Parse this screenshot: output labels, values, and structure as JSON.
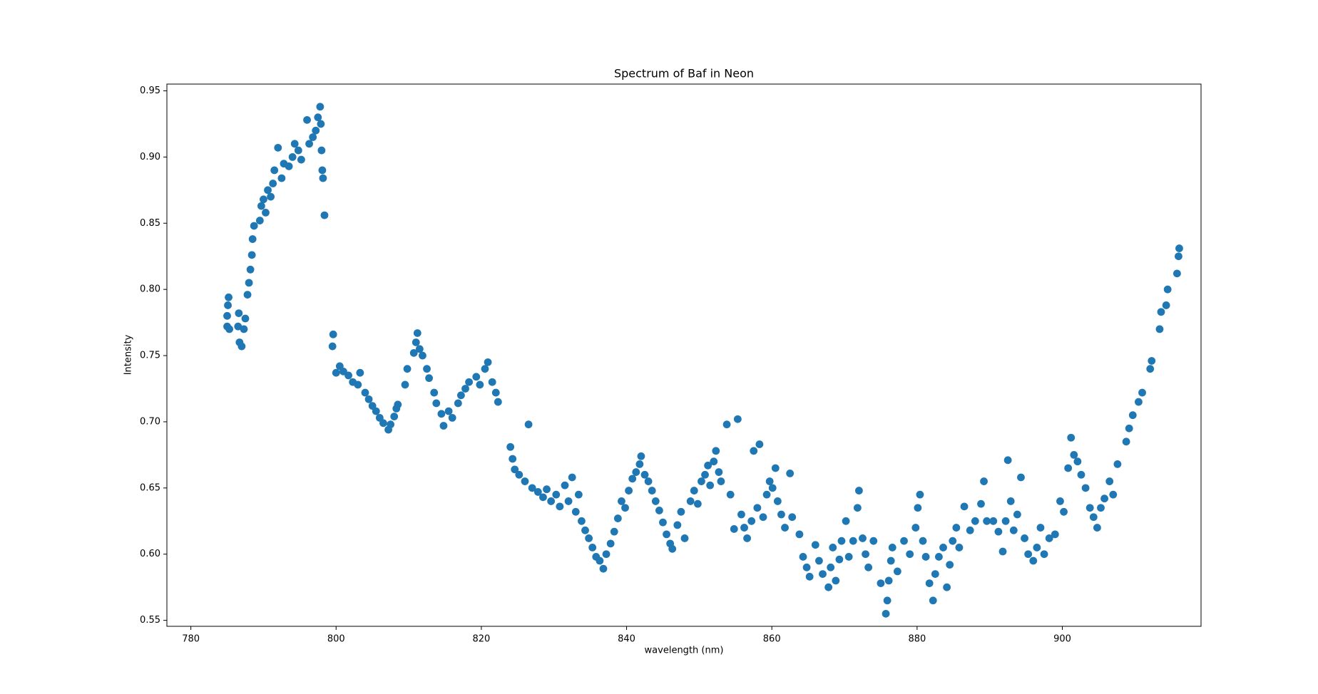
{
  "chart_data": {
    "type": "scatter",
    "title": "Spectrum of Baf in Neon",
    "x_label": "wavelength (nm)",
    "y_label": "Intensity",
    "color": "#1f77b4",
    "xlim": [
      776.7,
      919.1
    ],
    "ylim": [
      0.5455,
      0.9551
    ],
    "xticks": [
      780,
      800,
      820,
      840,
      860,
      880,
      900
    ],
    "yticks": [
      0.55,
      {
        "value": 0.6,
        "label": "0.60"
      },
      0.65,
      {
        "value": 0.7,
        "label": "0.70"
      },
      0.75,
      {
        "value": 0.8,
        "label": "0.80"
      },
      0.85,
      {
        "value": 0.9,
        "label": "0.90"
      },
      0.95
    ],
    "x": [
      785,
      785,
      785.1,
      785.2,
      785.3,
      786.5,
      786.6,
      786.7,
      787,
      787.3,
      787.5,
      787.8,
      788,
      788.2,
      788.4,
      788.5,
      788.7,
      789.5,
      789.7,
      790,
      790.3,
      790.6,
      791,
      791.3,
      791.5,
      792,
      792.5,
      792.8,
      793.5,
      794,
      794.3,
      794.8,
      795.2,
      796,
      796.3,
      796.8,
      797.2,
      797.5,
      797.8,
      797.9,
      798,
      798.1,
      798.2,
      798.4,
      799.5,
      799.6,
      800,
      800.5,
      801,
      801.7,
      802.3,
      803,
      803.3,
      804,
      804.5,
      805,
      805.5,
      806,
      806.5,
      807.2,
      807.5,
      808,
      808.3,
      808.5,
      809.5,
      809.8,
      810.7,
      811,
      811.2,
      811.5,
      811.9,
      812.5,
      812.8,
      813.5,
      813.8,
      814.5,
      814.8,
      815.5,
      816,
      816.8,
      817.2,
      817.8,
      818.3,
      819.3,
      819.8,
      820.5,
      820.9,
      821.5,
      822,
      822.3,
      824,
      824.3,
      824.6,
      825.2,
      826,
      826.5,
      827,
      827.8,
      828.5,
      829,
      829.6,
      830.3,
      830.8,
      831.5,
      832,
      832.5,
      833,
      833.4,
      833.8,
      834.3,
      834.8,
      835.3,
      835.8,
      836.3,
      836.8,
      837.2,
      837.8,
      838.3,
      838.8,
      839.3,
      839.8,
      840.3,
      840.8,
      841.3,
      841.8,
      842,
      842.5,
      843,
      843.5,
      844,
      844.5,
      845,
      845.5,
      846,
      846.3,
      847,
      847.5,
      848,
      848.8,
      849.3,
      849.8,
      850.3,
      850.8,
      851.2,
      851.5,
      852,
      852.3,
      852.7,
      853,
      853.8,
      854.3,
      854.8,
      855.3,
      855.8,
      856.2,
      856.6,
      857.2,
      857.5,
      858,
      858.3,
      858.8,
      859.3,
      859.7,
      860.1,
      860.5,
      860.8,
      861.3,
      861.8,
      862.5,
      862.8,
      863.8,
      864.3,
      864.8,
      865.2,
      866,
      866.5,
      867,
      867.8,
      868.1,
      868.4,
      868.8,
      869.3,
      869.6,
      870.2,
      870.6,
      871.2,
      871.8,
      872,
      872.5,
      872.9,
      873.3,
      874,
      875,
      875.7,
      875.9,
      876.1,
      876.4,
      876.6,
      877.3,
      878.2,
      879,
      879.8,
      880.1,
      880.4,
      880.8,
      881.2,
      881.7,
      882.2,
      882.5,
      883,
      883.6,
      884.1,
      884.5,
      884.9,
      885.4,
      885.8,
      886.5,
      887.3,
      888,
      888.8,
      889.2,
      889.6,
      890.5,
      891.2,
      891.8,
      892.2,
      892.5,
      892.9,
      893.3,
      893.8,
      894.3,
      894.8,
      895.3,
      896,
      896.5,
      897,
      897.5,
      898.2,
      899,
      899.7,
      900.2,
      900.8,
      901.2,
      901.6,
      902.1,
      902.6,
      903.2,
      903.8,
      904.3,
      904.8,
      905.3,
      905.8,
      906.5,
      907,
      907.6,
      908.8,
      909.2,
      909.7,
      910.5,
      911,
      912.1,
      912.3,
      913.4,
      913.6,
      914.3,
      914.5,
      915.8,
      916,
      916.1
    ],
    "values": [
      0.772,
      0.78,
      0.788,
      0.794,
      0.77,
      0.772,
      0.782,
      0.76,
      0.757,
      0.77,
      0.778,
      0.796,
      0.805,
      0.815,
      0.826,
      0.838,
      0.848,
      0.852,
      0.863,
      0.868,
      0.858,
      0.875,
      0.87,
      0.88,
      0.89,
      0.907,
      0.884,
      0.895,
      0.893,
      0.9,
      0.91,
      0.905,
      0.898,
      0.928,
      0.91,
      0.915,
      0.92,
      0.93,
      0.938,
      0.925,
      0.905,
      0.89,
      0.884,
      0.856,
      0.757,
      0.766,
      0.737,
      0.742,
      0.738,
      0.735,
      0.73,
      0.728,
      0.737,
      0.722,
      0.717,
      0.712,
      0.708,
      0.703,
      0.699,
      0.694,
      0.698,
      0.704,
      0.71,
      0.713,
      0.728,
      0.74,
      0.752,
      0.76,
      0.767,
      0.755,
      0.75,
      0.74,
      0.733,
      0.722,
      0.714,
      0.706,
      0.697,
      0.708,
      0.703,
      0.714,
      0.72,
      0.725,
      0.73,
      0.734,
      0.728,
      0.74,
      0.745,
      0.73,
      0.722,
      0.715,
      0.681,
      0.672,
      0.664,
      0.66,
      0.655,
      0.698,
      0.65,
      0.647,
      0.643,
      0.649,
      0.64,
      0.645,
      0.636,
      0.652,
      0.64,
      0.658,
      0.632,
      0.645,
      0.625,
      0.618,
      0.612,
      0.605,
      0.598,
      0.595,
      0.589,
      0.6,
      0.608,
      0.617,
      0.627,
      0.64,
      0.635,
      0.648,
      0.657,
      0.662,
      0.668,
      0.674,
      0.66,
      0.655,
      0.648,
      0.64,
      0.633,
      0.624,
      0.615,
      0.608,
      0.604,
      0.622,
      0.632,
      0.612,
      0.64,
      0.648,
      0.638,
      0.655,
      0.66,
      0.667,
      0.652,
      0.67,
      0.678,
      0.662,
      0.655,
      0.698,
      0.645,
      0.619,
      0.702,
      0.63,
      0.62,
      0.612,
      0.625,
      0.678,
      0.635,
      0.683,
      0.628,
      0.645,
      0.655,
      0.65,
      0.665,
      0.64,
      0.63,
      0.62,
      0.661,
      0.628,
      0.615,
      0.598,
      0.59,
      0.583,
      0.607,
      0.595,
      0.585,
      0.575,
      0.59,
      0.605,
      0.58,
      0.596,
      0.61,
      0.625,
      0.598,
      0.61,
      0.635,
      0.648,
      0.612,
      0.6,
      0.59,
      0.61,
      0.578,
      0.555,
      0.565,
      0.58,
      0.595,
      0.605,
      0.587,
      0.61,
      0.6,
      0.62,
      0.635,
      0.645,
      0.61,
      0.598,
      0.578,
      0.565,
      0.585,
      0.598,
      0.605,
      0.575,
      0.592,
      0.61,
      0.62,
      0.605,
      0.636,
      0.618,
      0.625,
      0.638,
      0.655,
      0.625,
      0.625,
      0.617,
      0.602,
      0.625,
      0.671,
      0.64,
      0.618,
      0.63,
      0.658,
      0.612,
      0.6,
      0.595,
      0.605,
      0.62,
      0.6,
      0.612,
      0.615,
      0.64,
      0.632,
      0.665,
      0.688,
      0.675,
      0.67,
      0.66,
      0.65,
      0.635,
      0.628,
      0.62,
      0.635,
      0.642,
      0.655,
      0.645,
      0.668,
      0.685,
      0.695,
      0.705,
      0.715,
      0.722,
      0.74,
      0.746,
      0.77,
      0.783,
      0.788,
      0.8,
      0.812,
      0.825,
      0.831
    ]
  }
}
